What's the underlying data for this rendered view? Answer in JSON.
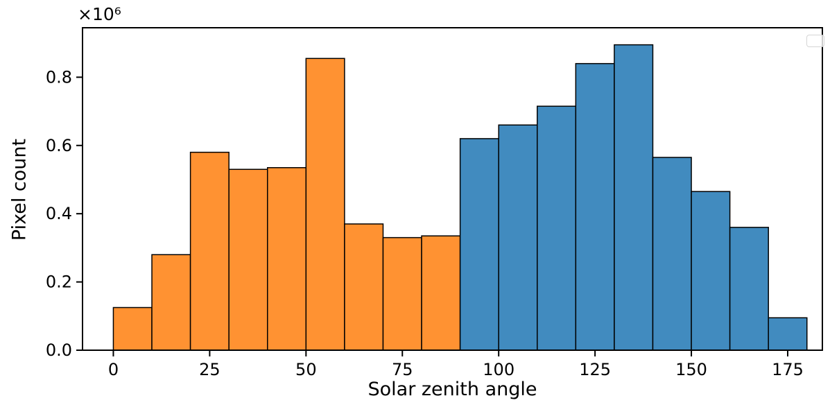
{
  "figure": {
    "xlabel": "Solar zenith angle",
    "ylabel": "Pixel count",
    "offset_text": "×10⁶"
  },
  "legend": {
    "visible": true,
    "entries": []
  },
  "chart_data": {
    "type": "bar",
    "subtype": "histogram",
    "title": "",
    "xlabel": "Solar zenith angle",
    "ylabel": "Pixel count",
    "y_offset_text": "×10⁶",
    "bin_width": 10,
    "bin_edges": [
      0,
      10,
      20,
      30,
      40,
      50,
      60,
      70,
      80,
      90,
      100,
      110,
      120,
      130,
      140,
      150,
      160,
      170,
      180
    ],
    "values": [
      125000,
      280000,
      580000,
      530000,
      535000,
      855000,
      370000,
      330000,
      335000,
      620000,
      660000,
      715000,
      840000,
      895000,
      565000,
      465000,
      360000,
      95000
    ],
    "split_index": 9,
    "colors": {
      "orange": "#ff9232",
      "blue": "#418bbf",
      "edge": "#000000"
    },
    "xlim": [
      -8,
      184
    ],
    "ylim": [
      0,
      945000
    ],
    "xticks": [
      0,
      25,
      50,
      75,
      100,
      125,
      150,
      175
    ],
    "xtick_labels": [
      "0",
      "25",
      "50",
      "75",
      "100",
      "125",
      "150",
      "175"
    ],
    "yticks": [
      0,
      200000,
      400000,
      600000,
      800000
    ],
    "ytick_labels": [
      "0.0",
      "0.2",
      "0.4",
      "0.6",
      "0.8"
    ],
    "grid": false,
    "legend_position": "upper right"
  }
}
